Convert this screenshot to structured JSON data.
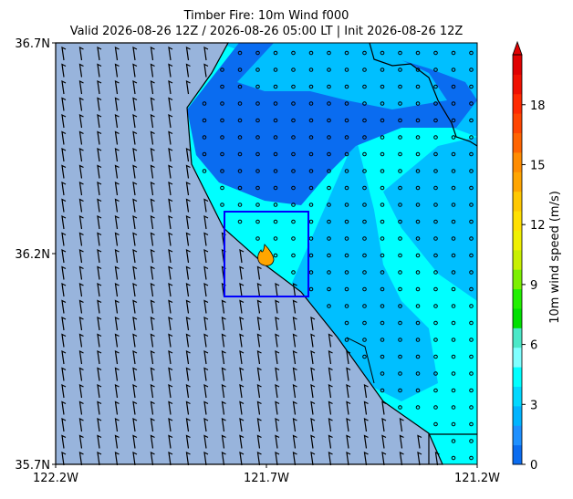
{
  "title": "Timber Fire: 10m Wind f000",
  "subtitle": "Valid 2026-08-26 12Z / 2026-08-26 05:00 LT | Init 2026-08-26 12Z",
  "map": {
    "xlim": [
      -122.2,
      -121.2
    ],
    "ylim": [
      35.7,
      36.7
    ],
    "xticks": [
      {
        "value": -122.2,
        "label": "122.2W"
      },
      {
        "value": -121.7,
        "label": "121.7W"
      },
      {
        "value": -121.2,
        "label": "121.2W"
      }
    ],
    "yticks": [
      {
        "value": 35.7,
        "label": "35.7N"
      },
      {
        "value": 36.2,
        "label": "36.2N"
      },
      {
        "value": 36.7,
        "label": "36.7N"
      }
    ]
  },
  "colorbar": {
    "label": "10m wind speed (m/s)",
    "lim": [
      0,
      20.5
    ],
    "ticks": [
      0,
      3,
      6,
      9,
      12,
      15,
      18
    ],
    "colors": [
      "#0a6cf0",
      "#1e90ff",
      "#00b4ff",
      "#00d8ff",
      "#00ffff",
      "#7fffff",
      "#4be8c8",
      "#00e000",
      "#22f000",
      "#7cf000",
      "#c8f000",
      "#f0f000",
      "#ffe000",
      "#ffc800",
      "#ffa500",
      "#ff8c00",
      "#ff6400",
      "#ff4500",
      "#ff2a00",
      "#f01000",
      "#e00000"
    ]
  }
}
